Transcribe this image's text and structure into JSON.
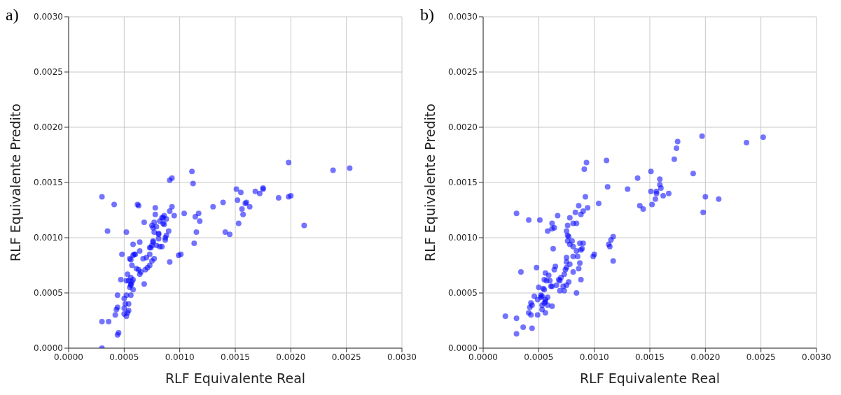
{
  "chart_data": [
    {
      "type": "scatter",
      "title": "a)",
      "xlabel": "RLF Equivalente Real",
      "ylabel": "RLF Equivalente Predito",
      "color": "#0000ff",
      "marker": "circle",
      "grid": true,
      "legend": false,
      "xlim": [
        0,
        0.003
      ],
      "ylim": [
        0,
        0.003
      ],
      "xticks": [
        {
          "value": 0,
          "label": "0.0000"
        },
        {
          "value": 0.0005,
          "label": "0.0005"
        },
        {
          "value": 0.001,
          "label": "0.0010"
        },
        {
          "value": 0.0015,
          "label": "0.0015"
        },
        {
          "value": 0.002,
          "label": "0.0020"
        },
        {
          "value": 0.0025,
          "label": "0.0025"
        },
        {
          "value": 0.003,
          "label": "0.0030"
        }
      ],
      "yticks": [
        {
          "value": 0,
          "label": "0.0000"
        },
        {
          "value": 0.0005,
          "label": "0.0005"
        },
        {
          "value": 0.001,
          "label": "0.0010"
        },
        {
          "value": 0.0015,
          "label": "0.0015"
        },
        {
          "value": 0.002,
          "label": "0.0020"
        },
        {
          "value": 0.0025,
          "label": "0.0025"
        },
        {
          "value": 0.003,
          "label": "0.0030"
        }
      ],
      "x": [
        0.00198,
        0.00238,
        0.00253,
        0.00111,
        0.00112,
        0.00091,
        0.00093,
        0.00151,
        0.00155,
        0.00168,
        0.00172,
        0.00175,
        0.00175,
        0.00189,
        0.00198,
        0.002,
        0.00212,
        0.0003,
        0.00041,
        0.00062,
        0.00063,
        0.00139,
        0.0013,
        0.00152,
        0.00159,
        0.0016,
        0.00163,
        0.00156,
        0.00157,
        0.00153,
        0.00104,
        0.00114,
        0.00117,
        0.00118,
        0.00115,
        0.00113,
        0.00141,
        0.00145,
        0.00099,
        0.00101,
        0.00091,
        0.00035,
        0.00052,
        0.00078,
        0.00093,
        0.00091,
        0.00095,
        0.00078,
        0.00086,
        0.00084,
        0.00085,
        0.00088,
        0.00082,
        0.00085,
        0.00086,
        0.00077,
        0.00068,
        0.00075,
        0.00079,
        0.00076,
        0.00077,
        0.0009,
        0.00081,
        0.00081,
        0.00088,
        0.00087,
        0.00081,
        0.00087,
        0.00076,
        0.00076,
        0.00075,
        0.00074,
        0.00073,
        0.00079,
        0.00082,
        0.00084,
        0.00064,
        0.00058,
        0.00064,
        0.00073,
        0.00059,
        0.0006,
        0.00058,
        0.00048,
        0.0007,
        0.00067,
        0.00077,
        0.00075,
        0.00055,
        0.00056,
        0.00057,
        0.00073,
        0.00071,
        0.00069,
        0.00061,
        0.00063,
        0.00065,
        0.00064,
        0.00053,
        0.00047,
        0.00052,
        0.00054,
        0.00056,
        0.00058,
        0.00057,
        0.00056,
        0.00056,
        0.00055,
        0.00058,
        0.00068,
        0.00056,
        0.00052,
        0.00044,
        0.0005,
        0.00051,
        0.00054,
        0.00044,
        0.00043,
        0.0005,
        0.00054,
        0.00053,
        0.0005,
        0.00042,
        0.00052,
        0.0003,
        0.00036,
        0.00045,
        0.00044,
        0.0003
      ],
      "values": [
        0.00168,
        0.00161,
        0.00163,
        0.0016,
        0.00149,
        0.00152,
        0.00154,
        0.00144,
        0.00141,
        0.00142,
        0.0014,
        0.00144,
        0.00145,
        0.00136,
        0.00137,
        0.00138,
        0.00111,
        0.00137,
        0.0013,
        0.0013,
        0.00129,
        0.00132,
        0.00128,
        0.00134,
        0.00131,
        0.00132,
        0.00128,
        0.00126,
        0.00121,
        0.00113,
        0.00122,
        0.00119,
        0.00122,
        0.00115,
        0.00105,
        0.00095,
        0.00105,
        0.00103,
        0.00084,
        0.00085,
        0.00078,
        0.00106,
        0.00105,
        0.00127,
        0.00128,
        0.00124,
        0.0012,
        0.00121,
        0.0012,
        0.00118,
        0.00118,
        0.00117,
        0.00115,
        0.00113,
        0.00112,
        0.00114,
        0.00114,
        0.00111,
        0.0011,
        0.00109,
        0.00105,
        0.00106,
        0.00104,
        0.00103,
        0.00102,
        0.001,
        0.00099,
        0.00098,
        0.00097,
        0.00096,
        0.00093,
        0.00091,
        0.00091,
        0.00093,
        0.00092,
        0.00092,
        0.00096,
        0.00094,
        0.00088,
        0.00085,
        0.00085,
        0.00085,
        0.00084,
        0.00085,
        0.00082,
        0.00081,
        0.00081,
        0.00079,
        0.00081,
        0.0008,
        0.00075,
        0.00075,
        0.00073,
        0.00071,
        0.00072,
        0.00071,
        0.00069,
        0.00067,
        0.00067,
        0.00062,
        0.00061,
        0.00061,
        0.00064,
        0.00062,
        0.0006,
        0.00058,
        0.00057,
        0.00055,
        0.00053,
        0.00058,
        0.00048,
        0.00048,
        0.00048,
        0.00045,
        0.0004,
        0.0004,
        0.00037,
        0.00035,
        0.00036,
        0.00034,
        0.00032,
        0.00031,
        0.0003,
        0.00029,
        0.00024,
        0.00024,
        0.00014,
        0.00012,
        0
      ]
    },
    {
      "type": "scatter",
      "title": "b)",
      "xlabel": "RLF Equivalente Real",
      "ylabel": "RLF Equivalente Predito",
      "color": "#0000ff",
      "marker": "circle",
      "grid": true,
      "legend": false,
      "xlim": [
        0,
        0.003
      ],
      "ylim": [
        0,
        0.003
      ],
      "xticks": [
        {
          "value": 0,
          "label": "0.0000"
        },
        {
          "value": 0.0005,
          "label": "0.0005"
        },
        {
          "value": 0.001,
          "label": "0.0010"
        },
        {
          "value": 0.0015,
          "label": "0.0015"
        },
        {
          "value": 0.002,
          "label": "0.0020"
        },
        {
          "value": 0.0025,
          "label": "0.0025"
        },
        {
          "value": 0.003,
          "label": "0.0030"
        }
      ],
      "yticks": [
        {
          "value": 0,
          "label": "0.0000"
        },
        {
          "value": 0.0005,
          "label": "0.0005"
        },
        {
          "value": 0.001,
          "label": "0.0010"
        },
        {
          "value": 0.0015,
          "label": "0.0015"
        },
        {
          "value": 0.002,
          "label": "0.0020"
        },
        {
          "value": 0.0025,
          "label": "0.0025"
        },
        {
          "value": 0.003,
          "label": "0.0030"
        }
      ],
      "x": [
        0.00197,
        0.00252,
        0.00237,
        0.00175,
        0.00174,
        0.00172,
        0.00189,
        0.00111,
        0.00093,
        0.00091,
        0.00151,
        0.00139,
        0.00159,
        0.00159,
        0.0016,
        0.00112,
        0.0013,
        0.00151,
        0.00156,
        0.00156,
        0.00167,
        0.00162,
        0.00155,
        0.00152,
        0.00141,
        0.00144,
        0.002,
        0.00212,
        0.00198,
        0.00092,
        0.00104,
        0.00086,
        0.00094,
        0.0009,
        0.00083,
        0.00088,
        0.0003,
        0.00041,
        0.00051,
        0.00067,
        0.00078,
        0.00062,
        0.00076,
        0.00081,
        0.00084,
        0.00064,
        0.00062,
        0.00058,
        0.00075,
        0.00076,
        0.00077,
        0.00117,
        0.00115,
        0.00076,
        0.0008,
        0.00081,
        0.00078,
        0.00087,
        0.0009,
        0.00113,
        0.00114,
        0.00063,
        0.00084,
        0.00088,
        0.00089,
        0.001,
        0.00099,
        0.00117,
        0.00075,
        0.00081,
        0.00085,
        0.00075,
        0.00087,
        0.00078,
        0.00075,
        0.00074,
        0.00086,
        0.00081,
        0.00065,
        0.00064,
        0.00073,
        0.00056,
        0.00059,
        0.00048,
        0.00034,
        0.0007,
        0.00068,
        0.00069,
        0.00055,
        0.00057,
        0.0006,
        0.00088,
        0.00077,
        0.00066,
        0.00061,
        0.00062,
        0.00072,
        0.00075,
        0.00069,
        0.00073,
        0.00084,
        0.0005,
        0.00054,
        0.00055,
        0.00046,
        0.00052,
        0.00052,
        0.00053,
        0.00049,
        0.00058,
        0.00056,
        0.00056,
        0.00055,
        0.00058,
        0.00053,
        0.00043,
        0.00044,
        0.00042,
        0.00062,
        0.00053,
        0.00041,
        0.00043,
        0.00049,
        0.00056,
        0.0002,
        0.0003,
        0.00036,
        0.00044,
        0.0003
      ],
      "values": [
        0.00192,
        0.00191,
        0.00186,
        0.00187,
        0.00181,
        0.00171,
        0.00158,
        0.0017,
        0.00168,
        0.00162,
        0.0016,
        0.00154,
        0.00153,
        0.00148,
        0.00145,
        0.00146,
        0.00144,
        0.00142,
        0.00142,
        0.0014,
        0.0014,
        0.00138,
        0.00135,
        0.0013,
        0.00129,
        0.00126,
        0.00137,
        0.00135,
        0.00123,
        0.00137,
        0.00131,
        0.00129,
        0.00127,
        0.00124,
        0.00123,
        0.00121,
        0.00122,
        0.00116,
        0.00116,
        0.0012,
        0.00118,
        0.00113,
        0.00111,
        0.00113,
        0.00113,
        0.00109,
        0.00108,
        0.00106,
        0.00106,
        0.00102,
        0.00101,
        0.00101,
        0.00098,
        0.00097,
        0.00097,
        0.00092,
        0.00094,
        0.00095,
        0.00095,
        0.00094,
        0.00092,
        0.0009,
        0.00088,
        0.00089,
        0.0009,
        0.00085,
        0.00083,
        0.00079,
        0.00082,
        0.00083,
        0.00083,
        0.00078,
        0.00077,
        0.00076,
        0.00073,
        0.00071,
        0.00072,
        0.00069,
        0.00074,
        0.00071,
        0.00067,
        0.00068,
        0.00066,
        0.00073,
        0.00069,
        0.00064,
        0.00062,
        0.00061,
        0.00062,
        0.00061,
        0.00061,
        0.00062,
        0.0006,
        0.00057,
        0.00056,
        0.00056,
        0.00056,
        0.00057,
        0.00052,
        0.00052,
        0.0005,
        0.00055,
        0.00054,
        0.00053,
        0.00047,
        0.00048,
        0.00046,
        0.00047,
        0.00044,
        0.00046,
        0.00044,
        0.00042,
        0.00041,
        0.00039,
        0.00039,
        0.00041,
        0.00039,
        0.00037,
        0.00038,
        0.00035,
        0.00032,
        0.0003,
        0.0003,
        0.00032,
        0.00029,
        0.00027,
        0.00019,
        0.00018,
        0.00013
      ]
    }
  ]
}
